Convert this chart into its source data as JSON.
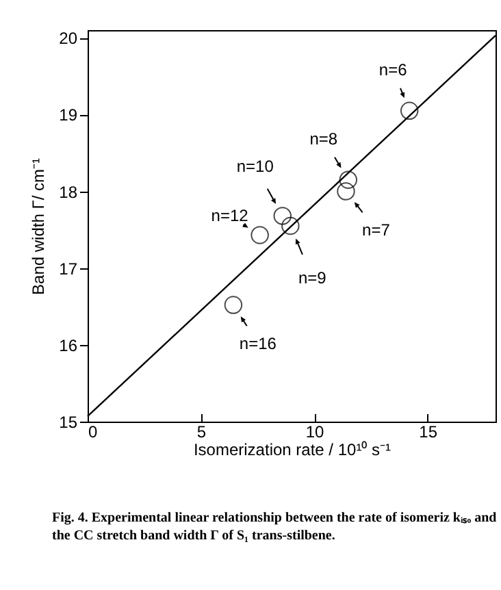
{
  "chart_data": {
    "type": "scatter",
    "xlabel": "Isomerization rate / 10¹⁰ s⁻¹",
    "ylabel": "Band width  Γ/ cm⁻¹",
    "x": [
      14.2,
      11.5,
      11.4,
      8.6,
      8.95,
      7.6,
      6.43
    ],
    "series": [
      {
        "color": "#000000",
        "marker": "circle",
        "values": [
          19.05,
          18.15,
          18.0,
          17.68,
          17.55,
          17.43,
          16.52
        ]
      },
      {
        "type": "line",
        "color": "#000000",
        "x": [
          0,
          18
        ],
        "values": [
          15.07,
          20.03
        ]
      }
    ],
    "grid": false,
    "xlim": [
      0,
      18
    ],
    "ylim": [
      15,
      20.1
    ],
    "xticks": [
      0,
      5,
      10,
      15
    ],
    "yticks": [
      15,
      16,
      17,
      18,
      19,
      20
    ],
    "annotations": [
      {
        "text": "n=6",
        "x": 14.2,
        "y": 19.05
      },
      {
        "text": "n=8",
        "x": 11.5,
        "y": 18.15
      },
      {
        "text": "n=7",
        "x": 11.4,
        "y": 18.0
      },
      {
        "text": "n=10",
        "x": 8.6,
        "y": 17.68
      },
      {
        "text": "n=9",
        "x": 8.95,
        "y": 17.55
      },
      {
        "text": "n=12",
        "x": 7.6,
        "y": 17.43
      },
      {
        "text": "n=16",
        "x": 6.43,
        "y": 16.52
      },
      "Fig. 4.   Experimental linear relationship between the rate of isomeriz kᵢₛₒ and the CC stretch band width Γ of S₁ trans-stilbene."
    ]
  }
}
